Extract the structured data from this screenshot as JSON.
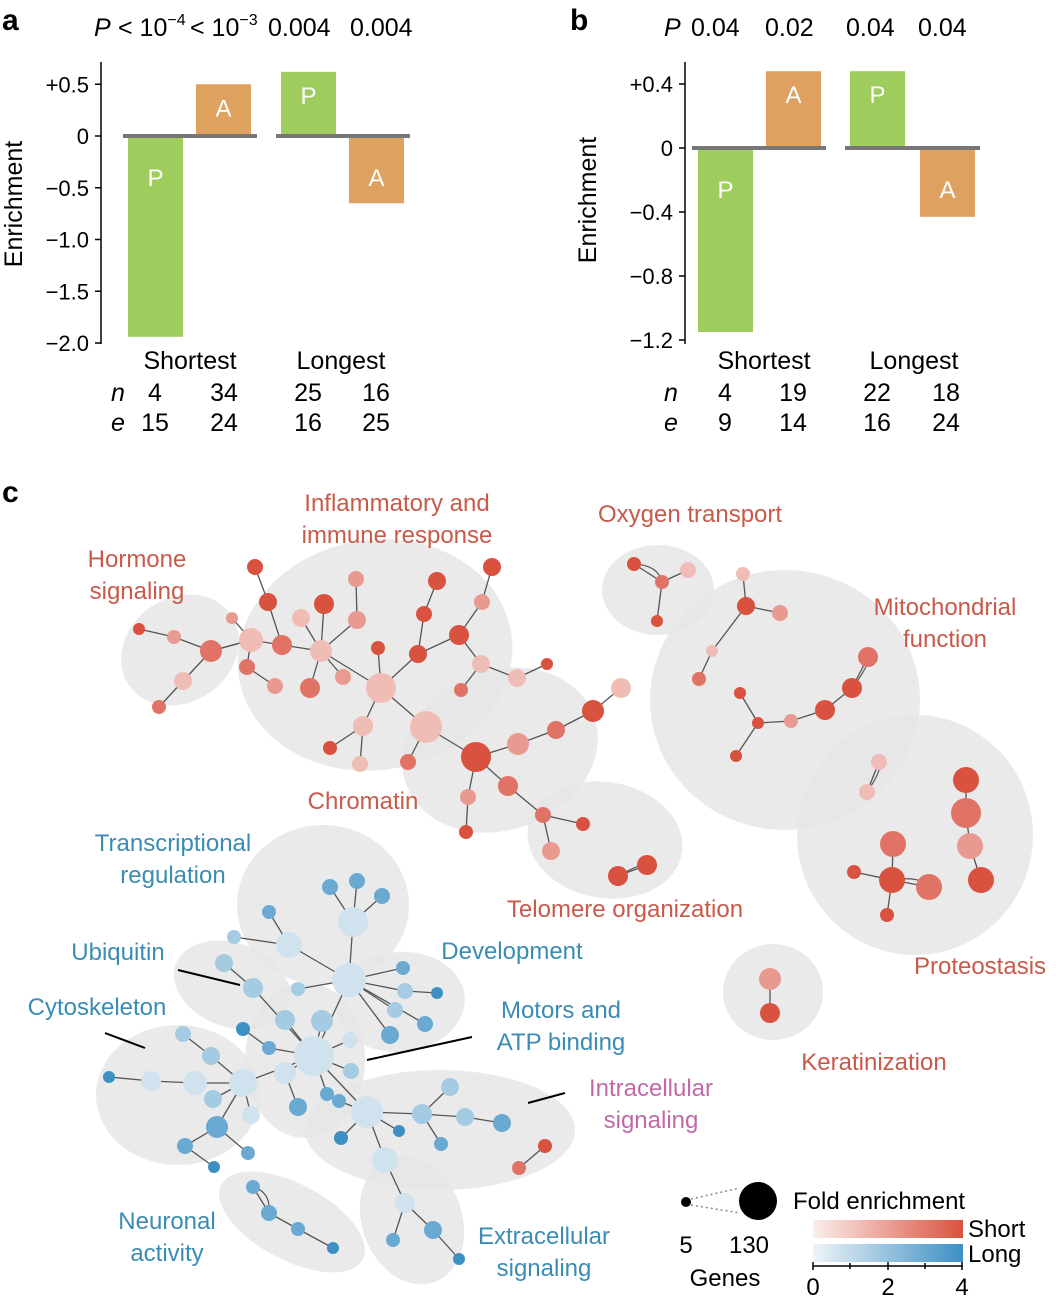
{
  "panel_letters": {
    "a": "a",
    "b": "b",
    "c": "c"
  },
  "colors": {
    "posterior": "#9ecd5d",
    "anterior": "#dea160",
    "zero_line": "#777777",
    "short_dark": "#d9523f",
    "short_light": "#f2c9c2",
    "long_dark": "#3d8fc4",
    "long_light": "#d5e6f0",
    "blob": "#e6e6e6"
  },
  "chart_data": [
    {
      "type": "bar",
      "panel": "a",
      "ylabel": "Enrichment",
      "p_prefix": "P",
      "p_values": [
        "< 10",
        "< 10",
        "0.004",
        "0.004"
      ],
      "p_exponents": [
        "−4",
        "−3",
        "",
        ""
      ],
      "ylim": [
        -2.0,
        0.7
      ],
      "yticks": [
        "+0.5",
        "0",
        "−0.5",
        "−1.0",
        "−1.5",
        "−2.0"
      ],
      "ytick_values": [
        0.5,
        0,
        -0.5,
        -1.0,
        -1.5,
        -2.0
      ],
      "groups": [
        "Shortest",
        "Longest"
      ],
      "bars": [
        {
          "label": "P",
          "group": "Shortest",
          "value": -1.94
        },
        {
          "label": "A",
          "group": "Shortest",
          "value": 0.5
        },
        {
          "label": "P",
          "group": "Longest",
          "value": 0.62
        },
        {
          "label": "A",
          "group": "Longest",
          "value": -0.65
        }
      ],
      "row_labels": [
        "n",
        "e"
      ],
      "n": [
        "4",
        "34",
        "25",
        "16"
      ],
      "e": [
        "15",
        "24",
        "16",
        "25"
      ]
    },
    {
      "type": "bar",
      "panel": "b",
      "ylabel": "Enrichment",
      "p_prefix": "P",
      "p_values": [
        "0.04",
        "0.02",
        "0.04",
        "0.04"
      ],
      "p_exponents": [
        "",
        "",
        "",
        ""
      ],
      "ylim": [
        -1.2,
        0.55
      ],
      "yticks": [
        "+0.4",
        "0",
        "−0.4",
        "−0.8",
        "−1.2"
      ],
      "ytick_values": [
        0.4,
        0,
        -0.4,
        -0.8,
        -1.2
      ],
      "groups": [
        "Shortest",
        "Longest"
      ],
      "bars": [
        {
          "label": "P",
          "group": "Shortest",
          "value": -1.15
        },
        {
          "label": "A",
          "group": "Shortest",
          "value": 0.48
        },
        {
          "label": "P",
          "group": "Longest",
          "value": 0.48
        },
        {
          "label": "A",
          "group": "Longest",
          "value": -0.43
        }
      ],
      "row_labels": [
        "n",
        "e"
      ],
      "n": [
        "4",
        "19",
        "22",
        "18"
      ],
      "e": [
        "9",
        "14",
        "16",
        "24"
      ]
    }
  ],
  "network": {
    "short_clusters": [
      "Inflammatory and immune response",
      "Oxygen transport",
      "Hormone signaling",
      "Mitochondrial function",
      "Chromatin",
      "Telomere organization",
      "Proteostasis",
      "Keratinization"
    ],
    "long_clusters": [
      "Transcriptional regulation",
      "Ubiquitin",
      "Development",
      "Cytoskeleton",
      "Motors and ATP binding",
      "Neuronal activity",
      "Extracellular signaling"
    ],
    "mixed_clusters": [
      "Intracellular signaling"
    ],
    "labels": {
      "inflammatory_1": "Inflammatory and",
      "inflammatory_2": "immune response",
      "hormone_1": "Hormone",
      "hormone_2": "signaling",
      "oxygen": "Oxygen transport",
      "mito_1": "Mitochondrial",
      "mito_2": "function",
      "chromatin": "Chromatin",
      "telomere": "Telomere organization",
      "proteostasis": "Proteostasis",
      "keratinization": "Keratinization",
      "transcriptional_1": "Transcriptional",
      "transcriptional_2": "regulation",
      "ubiquitin": "Ubiquitin",
      "development": "Development",
      "cytoskeleton": "Cytoskeleton",
      "motors_1": "Motors and",
      "motors_2": "ATP binding",
      "intracellular_1": "Intracellular",
      "intracellular_2": "signaling",
      "neuronal_1": "Neuronal",
      "neuronal_2": "activity",
      "extracellular_1": "Extracellular",
      "extracellular_2": "signaling"
    }
  },
  "legend": {
    "size_min": "5",
    "size_max": "130",
    "size_title": "Genes",
    "fold_title": "Fold enrichment",
    "short_label": "Short",
    "long_label": "Long",
    "ticks": [
      "0",
      "2",
      "4"
    ]
  }
}
